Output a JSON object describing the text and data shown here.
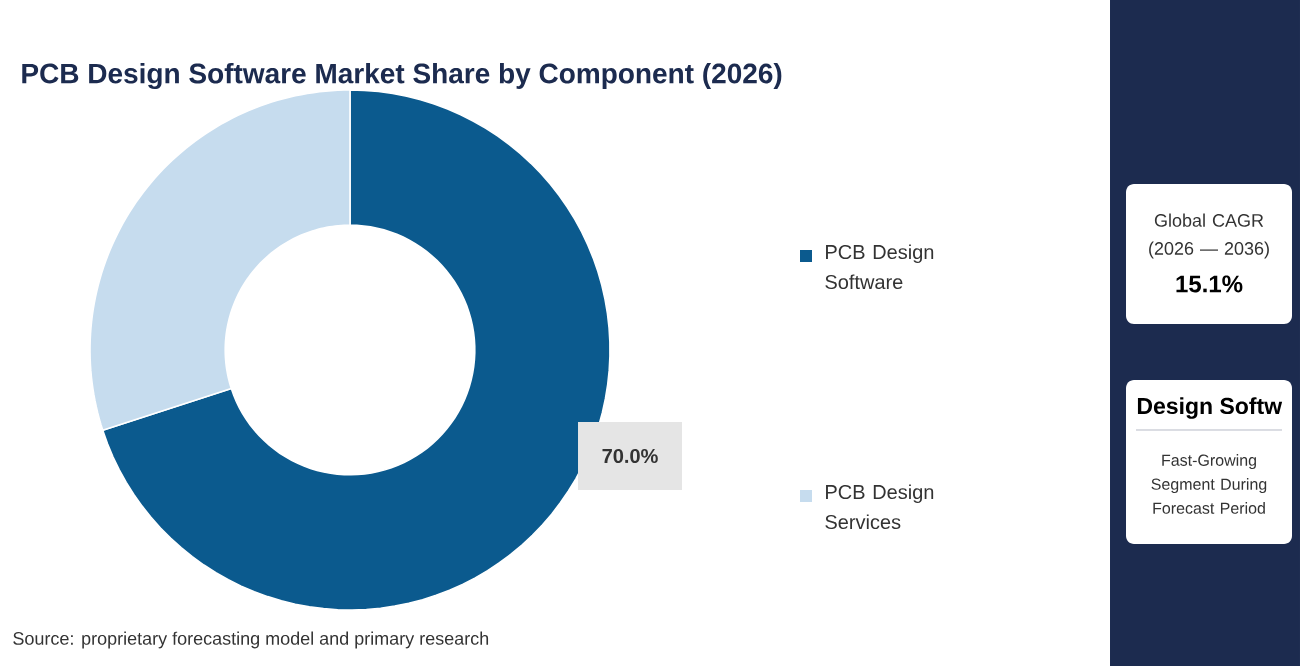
{
  "chart_data": {
    "type": "donut",
    "title": "PCB Design Software Market Share by Component (2026)",
    "categories": [
      "PCB Design Software",
      "PCB Design Services"
    ],
    "values": [
      70,
      30
    ],
    "colors": [
      "#0b5a8e",
      "#c6dcee"
    ],
    "value_labels": [
      "70.0%",
      null
    ],
    "legend": "right",
    "annotations": [
      "Source: proprietary forecasting model and primary research",
      "Global CAGR (2026 — 2036)",
      "15.1%",
      "Design Softw",
      "Fast-Growing Segment During Forecast Period"
    ]
  }
}
